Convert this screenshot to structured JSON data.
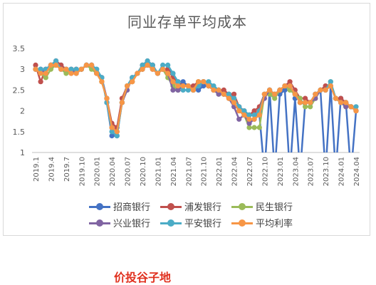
{
  "chart_data": {
    "type": "line",
    "title": "同业存单平均成本",
    "xlabel": "",
    "ylabel": "",
    "ylim": [
      1,
      3.5
    ],
    "yticks": [
      1,
      1.5,
      2,
      2.5,
      3,
      3.5
    ],
    "ytick_labels": [
      "1",
      "1.5",
      "2",
      "2.5",
      "3",
      "3.5"
    ],
    "xtick_labels": [
      "2019.1",
      "2019.4",
      "2019.7",
      "2019.10",
      "2020.01",
      "2020.04",
      "2020.07",
      "2020.10",
      "2021.01",
      "2021.04",
      "2021.07",
      "2021.10",
      "2022.01",
      "2022.04",
      "2022.07",
      "2022.10",
      "2023.01",
      "2023.04",
      "2023.07",
      "2023.10",
      "2024.01",
      "2024.04"
    ],
    "grid": false,
    "legend_position": "bottom",
    "series": [
      {
        "name": "招商银行",
        "color": "#4472c4",
        "values": [
          3.0,
          3.0,
          3.0,
          3.1,
          3.2,
          3.1,
          3.0,
          3.0,
          3.0,
          3.0,
          3.1,
          3.1,
          3.0,
          2.8,
          2.2,
          1.4,
          1.4,
          2.2,
          2.6,
          2.8,
          2.9,
          3.0,
          3.1,
          3.1,
          2.9,
          3.0,
          3.0,
          2.9,
          2.5,
          2.7,
          2.6,
          2.5,
          2.5,
          2.6,
          2.6,
          2.5,
          2.5,
          2.4,
          2.4,
          2.3,
          2.1,
          2.0,
          1.9,
          1.9,
          1.9,
          0.5,
          2.5,
          0.5,
          2.4,
          2.5,
          0.5,
          2.3,
          0.5,
          2.2,
          2.2,
          2.4,
          2.5,
          0.5,
          2.6,
          0.5,
          2.3,
          2.2,
          0.5,
          2.0
        ]
      },
      {
        "name": "浦发银行",
        "color": "#c0504d",
        "values": [
          3.1,
          2.7,
          3.0,
          3.1,
          3.2,
          3.1,
          3.0,
          2.9,
          3.0,
          3.0,
          3.1,
          3.1,
          2.9,
          2.7,
          2.3,
          1.7,
          1.6,
          2.3,
          2.6,
          2.7,
          2.9,
          3.1,
          3.2,
          3.1,
          2.9,
          3.0,
          3.0,
          2.8,
          2.7,
          2.6,
          2.6,
          2.6,
          2.7,
          2.7,
          2.6,
          2.5,
          2.5,
          2.5,
          2.4,
          2.4,
          2.1,
          2.0,
          1.9,
          2.0,
          2.1,
          2.4,
          2.5,
          2.4,
          2.5,
          2.6,
          2.7,
          2.5,
          2.3,
          2.3,
          2.2,
          2.4,
          2.5,
          2.6,
          2.6,
          2.3,
          2.3,
          2.2,
          2.1,
          2.0
        ]
      },
      {
        "name": "民生银行",
        "color": "#9bbb59",
        "values": [
          3.0,
          2.9,
          2.8,
          3.0,
          3.1,
          3.0,
          2.9,
          3.0,
          2.9,
          3.0,
          3.1,
          3.0,
          2.9,
          2.7,
          2.3,
          1.6,
          1.5,
          2.2,
          2.6,
          2.7,
          2.9,
          3.0,
          3.1,
          3.0,
          2.9,
          3.0,
          2.8,
          2.6,
          2.5,
          2.6,
          2.6,
          2.5,
          2.7,
          2.7,
          2.6,
          2.5,
          2.4,
          2.4,
          2.3,
          2.2,
          2.0,
          1.9,
          1.6,
          1.6,
          1.6,
          2.4,
          2.4,
          2.3,
          2.5,
          2.6,
          2.5,
          2.4,
          2.3,
          2.1,
          2.1,
          2.3,
          2.5,
          2.5,
          2.7,
          2.3,
          2.2,
          2.1,
          2.1,
          2.0
        ]
      },
      {
        "name": "兴业银行",
        "color": "#8064a2",
        "values": [
          3.0,
          3.0,
          2.9,
          3.1,
          3.1,
          3.0,
          3.0,
          3.0,
          2.9,
          3.0,
          3.1,
          3.1,
          2.9,
          2.8,
          2.3,
          1.6,
          1.5,
          2.2,
          2.5,
          2.8,
          2.9,
          3.0,
          3.1,
          3.0,
          2.9,
          3.0,
          2.9,
          2.5,
          2.5,
          2.6,
          2.6,
          2.5,
          2.6,
          2.7,
          2.6,
          2.5,
          2.4,
          2.4,
          2.3,
          2.1,
          1.8,
          1.9,
          1.7,
          1.8,
          2.0,
          2.3,
          2.5,
          2.4,
          2.5,
          2.6,
          2.6,
          2.4,
          2.2,
          2.2,
          2.2,
          2.3,
          2.5,
          2.5,
          2.6,
          2.3,
          2.2,
          2.1,
          2.1,
          2.0
        ]
      },
      {
        "name": "平安银行",
        "color": "#4bacc6",
        "values": [
          3.0,
          3.0,
          3.0,
          3.1,
          3.2,
          3.0,
          3.0,
          3.0,
          3.0,
          3.0,
          3.1,
          3.1,
          3.0,
          2.8,
          2.2,
          1.5,
          1.4,
          2.2,
          2.6,
          2.8,
          2.9,
          3.1,
          3.2,
          3.1,
          2.9,
          3.1,
          3.1,
          2.9,
          2.7,
          2.5,
          2.5,
          2.5,
          2.6,
          2.7,
          2.7,
          2.6,
          2.5,
          2.4,
          2.4,
          2.3,
          2.1,
          2.0,
          1.9,
          1.9,
          2.0,
          2.4,
          2.5,
          2.4,
          2.5,
          2.6,
          2.6,
          2.4,
          2.2,
          2.2,
          2.2,
          2.4,
          2.5,
          2.5,
          2.7,
          2.3,
          2.2,
          2.2,
          2.1,
          2.1
        ]
      },
      {
        "name": "平均利率",
        "color": "#f79646",
        "values": [
          3.0,
          2.9,
          2.9,
          3.1,
          3.1,
          3.0,
          3.0,
          2.9,
          2.9,
          3.0,
          3.1,
          3.1,
          2.9,
          2.7,
          2.3,
          1.6,
          1.5,
          2.2,
          2.6,
          2.7,
          2.9,
          3.0,
          3.1,
          3.0,
          2.9,
          3.0,
          2.9,
          2.7,
          2.6,
          2.6,
          2.6,
          2.5,
          2.7,
          2.7,
          2.6,
          2.5,
          2.5,
          2.4,
          2.3,
          2.2,
          2.0,
          1.9,
          1.8,
          1.8,
          1.9,
          2.4,
          2.5,
          2.4,
          2.5,
          2.6,
          2.6,
          2.4,
          2.2,
          2.2,
          2.2,
          2.4,
          2.5,
          2.5,
          2.6,
          2.3,
          2.2,
          2.2,
          2.1,
          2.0
        ]
      }
    ]
  },
  "watermark": "价投谷子地"
}
